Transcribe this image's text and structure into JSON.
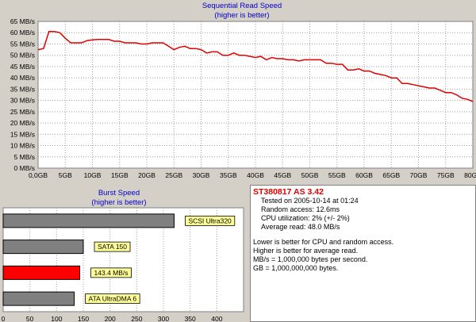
{
  "chart_data": [
    {
      "type": "line",
      "title": "Sequential Read Speed",
      "subtitle": "(higher is better)",
      "x_tick_labels": [
        "0,0GB",
        "5GB",
        "10GB",
        "15GB",
        "20GB",
        "25GB",
        "30GB",
        "35GB",
        "40GB",
        "45GB",
        "50GB",
        "55GB",
        "60GB",
        "65GB",
        "70GB",
        "75GB",
        "80GB"
      ],
      "y_tick_labels": [
        "0 MB/s",
        "5 MB/s",
        "10 MB/s",
        "15 MB/s",
        "20 MB/s",
        "25 MB/s",
        "30 MB/s",
        "35 MB/s",
        "40 MB/s",
        "45 MB/s",
        "50 MB/s",
        "55 MB/s",
        "60 MB/s",
        "65 MB/s"
      ],
      "xlim": [
        0,
        80
      ],
      "ylim": [
        0,
        65
      ],
      "grid": true,
      "series": [
        {
          "color": "#e00000",
          "x": [
            0,
            1,
            2,
            3,
            4,
            5,
            6,
            7,
            8,
            9,
            10,
            11,
            12,
            13,
            14,
            15,
            16,
            17,
            18,
            19,
            20,
            21,
            22,
            23,
            24,
            25,
            26,
            27,
            28,
            29,
            30,
            31,
            32,
            33,
            34,
            35,
            36,
            37,
            38,
            39,
            40,
            41,
            42,
            43,
            44,
            45,
            46,
            47,
            48,
            49,
            50,
            51,
            52,
            53,
            54,
            55,
            56,
            57,
            58,
            59,
            60,
            61,
            62,
            63,
            64,
            65,
            66,
            67,
            68,
            69,
            70,
            71,
            72,
            73,
            74,
            75,
            76,
            77,
            78,
            79,
            80
          ],
          "y": [
            52.5,
            53,
            60.5,
            60.5,
            60,
            57.5,
            55.5,
            55.5,
            55.5,
            56.5,
            56.8,
            57,
            57,
            57,
            56.2,
            56.2,
            55.5,
            55.5,
            55.5,
            55,
            55,
            55.5,
            55.5,
            55.5,
            54,
            52.5,
            53.5,
            54,
            53,
            53,
            52.5,
            51,
            51.5,
            51.5,
            50,
            50,
            51,
            50,
            50,
            49.5,
            49,
            49.5,
            48,
            49,
            48.5,
            48.5,
            48,
            48,
            47.5,
            48,
            48,
            48,
            48,
            46.5,
            46.5,
            46,
            46,
            43.5,
            43.5,
            44,
            43,
            43,
            42,
            41.5,
            41,
            40,
            40,
            37.5,
            37.5,
            37,
            36.5,
            36,
            35.5,
            35.5,
            34.5,
            33.5,
            33.5,
            32.5,
            31,
            30.5,
            29.5
          ]
        }
      ]
    },
    {
      "type": "bar",
      "title": "Burst Speed",
      "subtitle": "(higher is better)",
      "orientation": "horizontal",
      "xlim": [
        0,
        450
      ],
      "x_tick_labels": [
        "0",
        "50",
        "100",
        "150",
        "200",
        "250",
        "300",
        "350",
        "400"
      ],
      "bars": [
        {
          "label": "SCSI Ultra320",
          "value": 320,
          "color": "#808080"
        },
        {
          "label": "SATA 150",
          "value": 150,
          "color": "#808080"
        },
        {
          "label": "143.4 MB/s",
          "value": 143.4,
          "color": "#ff0000"
        },
        {
          "label": "ATA UltraDMA 6",
          "value": 133,
          "color": "#808080"
        }
      ]
    }
  ],
  "info": {
    "title": "ST380817 AS 3.42",
    "lines": [
      "Tested on 2005-10-14 at 01:24",
      "Random access: 12.6ms",
      "CPU utilization: 2% (+/- 2%)",
      "Average read: 48.0 MB/s"
    ],
    "notes": [
      "Lower is better for CPU and random access.",
      "Higher is better for average read.",
      "MB/s = 1,000,000 bytes per second.",
      "GB = 1,000,000,000 bytes."
    ]
  },
  "colors": {
    "background": "#d4d0c8",
    "title": "#0000cc",
    "grid": "#a0a0a0",
    "line": "#e00000",
    "label_box": "#ffff99"
  }
}
